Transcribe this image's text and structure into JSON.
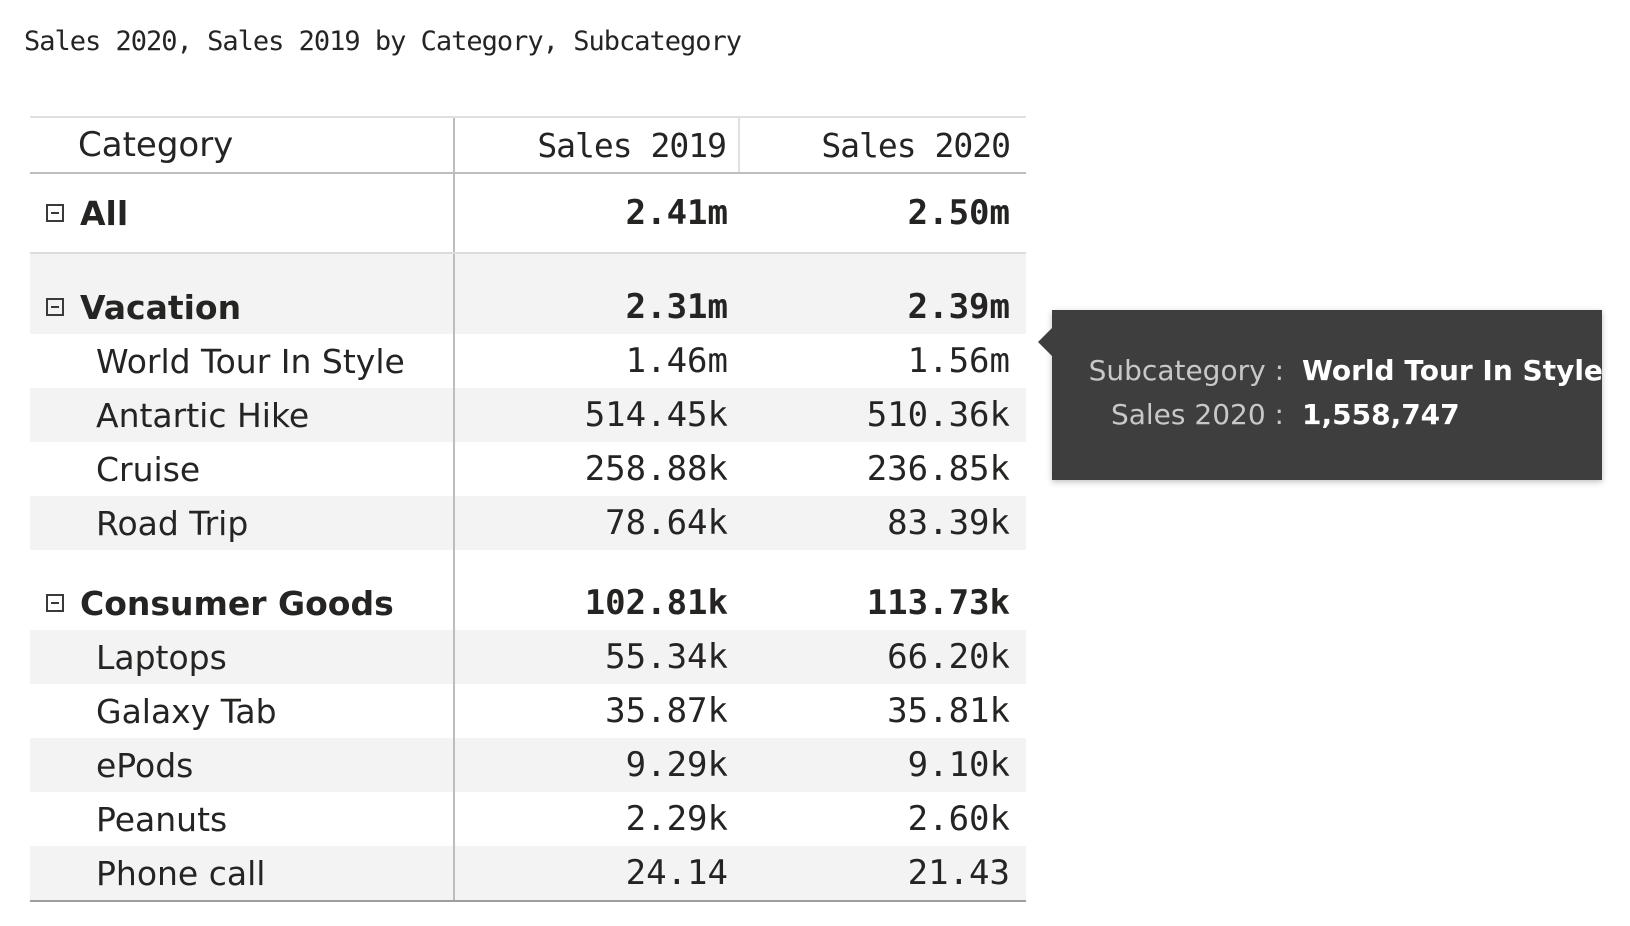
{
  "visual": {
    "title": "Sales 2020, Sales 2019 by Category, Subcategory"
  },
  "matrix": {
    "headers": {
      "category": "Category",
      "sales2019": "Sales 2019",
      "sales2020": "Sales 2020"
    },
    "total": {
      "label": "All",
      "sales2019": "2.41m",
      "sales2020": "2.50m"
    },
    "groups": [
      {
        "label": "Vacation",
        "sales2019": "2.31m",
        "sales2020": "2.39m",
        "children": [
          {
            "label": "World Tour In Style",
            "sales2019": "1.46m",
            "sales2020": "1.56m"
          },
          {
            "label": "Antartic Hike",
            "sales2019": "514.45k",
            "sales2020": "510.36k"
          },
          {
            "label": "Cruise",
            "sales2019": "258.88k",
            "sales2020": "236.85k"
          },
          {
            "label": "Road Trip",
            "sales2019": "78.64k",
            "sales2020": "83.39k"
          }
        ]
      },
      {
        "label": "Consumer Goods",
        "sales2019": "102.81k",
        "sales2020": "113.73k",
        "children": [
          {
            "label": "Laptops",
            "sales2019": "55.34k",
            "sales2020": "66.20k"
          },
          {
            "label": "Galaxy Tab",
            "sales2019": "35.87k",
            "sales2020": "35.81k"
          },
          {
            "label": "ePods",
            "sales2019": "9.29k",
            "sales2020": "9.10k"
          },
          {
            "label": "Peanuts",
            "sales2019": "2.29k",
            "sales2020": "2.60k"
          },
          {
            "label": "Phone call",
            "sales2019": "24.14",
            "sales2020": "21.43"
          }
        ]
      }
    ]
  },
  "tooltip": {
    "rows": [
      {
        "key": "Subcategory :",
        "value": "World Tour In Style"
      },
      {
        "key": "Sales 2020 :",
        "value": "1,558,747"
      }
    ]
  },
  "colors": {
    "row_shade": "#f3f3f3",
    "tooltip_bg": "#3e3e3e",
    "text": "#252423"
  }
}
